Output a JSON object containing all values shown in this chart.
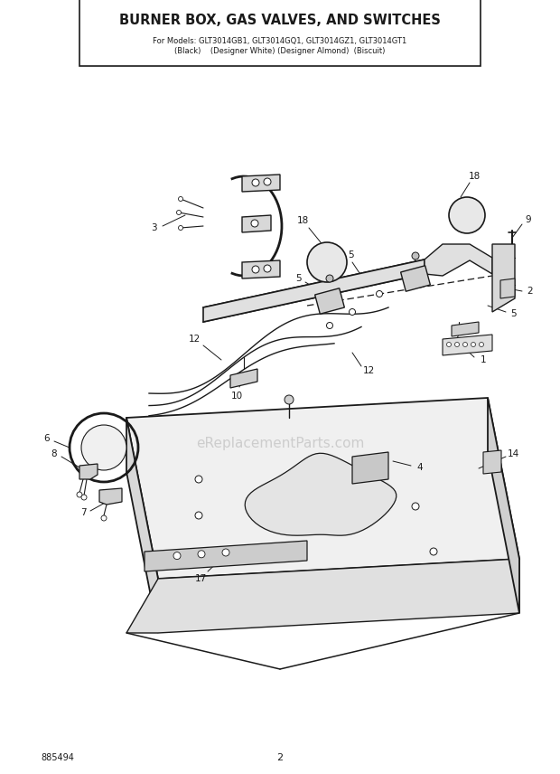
{
  "title": "BURNER BOX, GAS VALVES, AND SWITCHES",
  "subtitle1": "For Models: GLT3014GB1, GLT3014GQ1, GLT3014GZ1, GLT3014GT1",
  "subtitle2": "(Black)    (Designer White) (Designer Almond)  (Biscuit)",
  "page_num": "2",
  "part_num": "885494",
  "bg_color": "#ffffff",
  "line_color": "#1a1a1a",
  "watermark": "eReplacementParts.com"
}
